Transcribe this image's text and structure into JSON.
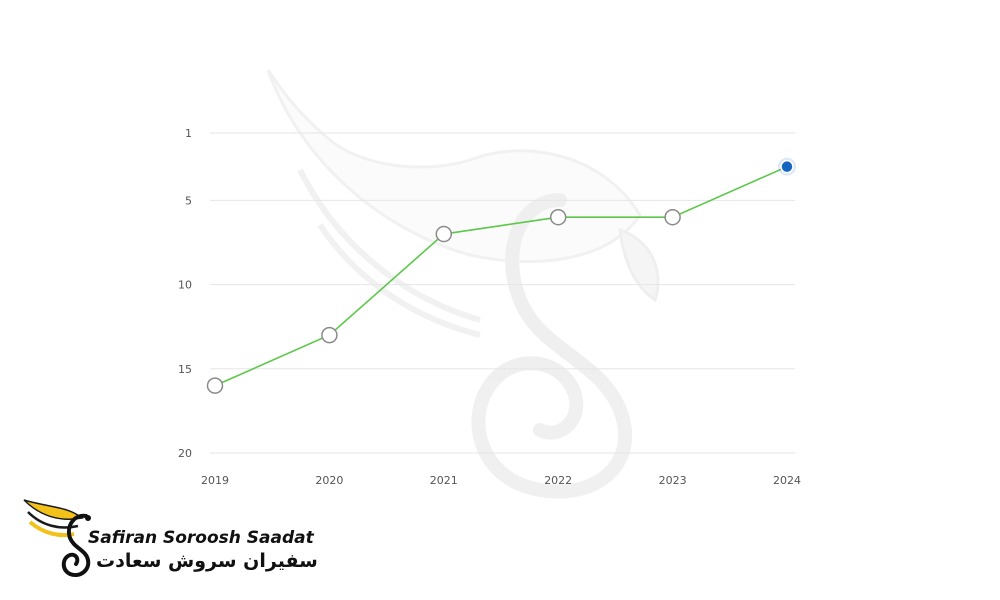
{
  "chart_data": {
    "type": "line",
    "x": [
      "2019",
      "2020",
      "2021",
      "2022",
      "2023",
      "2024"
    ],
    "series": [
      {
        "values": [
          16,
          13,
          7,
          6,
          6,
          3
        ]
      }
    ],
    "y_ticks": [
      "1",
      "5",
      "10",
      "15",
      "20"
    ],
    "y_tick_values": [
      1,
      5,
      10,
      15,
      20
    ],
    "ylim": [
      1,
      20
    ],
    "y_axis_inverted": true,
    "grid": "horizontal",
    "colors": {
      "line": "#5cc84a",
      "highlight_point": "#1565c0",
      "grid": "#e6e6e6"
    },
    "highlighted_point": "2024"
  },
  "brand": {
    "name": "Safiran Soroosh Saadat",
    "name_fa": "سفیران سروش سعادت",
    "logo_icon": "golden-wing-swan-logo-icon",
    "watermark_icon": "wing-swan-watermark-icon"
  }
}
